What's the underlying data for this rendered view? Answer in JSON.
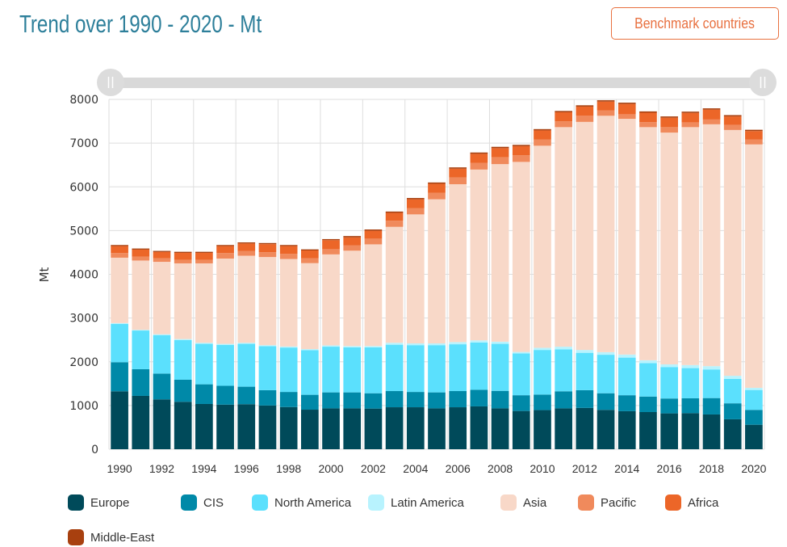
{
  "header": {
    "title": "Trend over 1990 - 2020 - Mt",
    "benchmark_button": "Benchmark countries"
  },
  "slider": {
    "range_start": "1990",
    "range_end": "2020"
  },
  "colors": {
    "title": "#2d7f9a",
    "accent": "#e8703f"
  },
  "chart_data": {
    "type": "bar",
    "stacked": true,
    "title": "Trend over 1990 - 2020 - Mt",
    "xlabel": "",
    "ylabel": "Mt",
    "ylim": [
      0,
      8000
    ],
    "yticks": [
      0,
      1000,
      2000,
      3000,
      4000,
      5000,
      6000,
      7000,
      8000
    ],
    "xtick_labels": [
      "1990",
      "1992",
      "1994",
      "1996",
      "1998",
      "2000",
      "2002",
      "2004",
      "2006",
      "2008",
      "2010",
      "2012",
      "2014",
      "2016",
      "2018",
      "2020"
    ],
    "grid": true,
    "legend_position": "bottom",
    "categories": [
      "1990",
      "1991",
      "1992",
      "1993",
      "1994",
      "1995",
      "1996",
      "1997",
      "1998",
      "1999",
      "2000",
      "2001",
      "2002",
      "2003",
      "2004",
      "2005",
      "2006",
      "2007",
      "2008",
      "2009",
      "2010",
      "2011",
      "2012",
      "2013",
      "2014",
      "2015",
      "2016",
      "2017",
      "2018",
      "2019",
      "2020"
    ],
    "series": [
      {
        "name": "Europe",
        "color": "#004a5a",
        "values": [
          1325,
          1220,
          1140,
          1085,
          1035,
          1020,
          1030,
          1000,
          965,
          905,
          935,
          935,
          930,
          960,
          960,
          935,
          960,
          980,
          935,
          875,
          895,
          935,
          945,
          900,
          870,
          850,
          820,
          825,
          795,
          685,
          560
        ]
      },
      {
        "name": "CIS",
        "color": "#0089a8",
        "values": [
          665,
          610,
          590,
          505,
          450,
          430,
          400,
          350,
          345,
          340,
          365,
          365,
          350,
          370,
          350,
          365,
          370,
          380,
          400,
          360,
          355,
          390,
          405,
          380,
          365,
          355,
          340,
          340,
          375,
          365,
          340
        ]
      },
      {
        "name": "North America",
        "color": "#5be0fd",
        "values": [
          875,
          885,
          880,
          905,
          925,
          935,
          980,
          1005,
          1015,
          1020,
          1045,
          1030,
          1050,
          1060,
          1070,
          1080,
          1070,
          1080,
          1075,
          955,
          1020,
          960,
          855,
          880,
          860,
          765,
          720,
          690,
          655,
          560,
          455
        ]
      },
      {
        "name": "Latin America",
        "color": "#b8f3fe",
        "values": [
          20,
          15,
          20,
          25,
          25,
          25,
          25,
          25,
          25,
          25,
          30,
          30,
          30,
          45,
          40,
          40,
          50,
          50,
          50,
          35,
          50,
          60,
          65,
          60,
          70,
          65,
          60,
          70,
          75,
          70,
          50
        ]
      },
      {
        "name": "Asia",
        "color": "#f8d8c8",
        "values": [
          1495,
          1585,
          1655,
          1730,
          1815,
          1950,
          1990,
          2015,
          2000,
          1965,
          2080,
          2180,
          2325,
          2650,
          2950,
          3295,
          3610,
          3905,
          4060,
          4345,
          4620,
          5020,
          5215,
          5405,
          5390,
          5330,
          5300,
          5440,
          5530,
          5620,
          5565
        ]
      },
      {
        "name": "Pacific",
        "color": "#f08a5c",
        "values": [
          105,
          90,
          80,
          80,
          80,
          125,
          105,
          110,
          120,
          115,
          120,
          125,
          130,
          140,
          145,
          150,
          155,
          155,
          160,
          150,
          145,
          135,
          145,
          125,
          105,
          115,
          125,
          110,
          110,
          115,
          115
        ]
      },
      {
        "name": "Africa",
        "color": "#ec6628",
        "values": [
          160,
          160,
          145,
          160,
          160,
          160,
          175,
          185,
          175,
          175,
          205,
          180,
          180,
          180,
          200,
          205,
          200,
          205,
          205,
          210,
          205,
          205,
          205,
          200,
          235,
          215,
          215,
          215,
          225,
          195,
          190
        ]
      },
      {
        "name": "Middle-East",
        "color": "#a8400f",
        "values": [
          25,
          25,
          25,
          25,
          25,
          25,
          25,
          25,
          25,
          25,
          25,
          30,
          30,
          30,
          30,
          30,
          30,
          30,
          30,
          30,
          30,
          30,
          30,
          30,
          30,
          30,
          30,
          30,
          30,
          30,
          30
        ]
      }
    ]
  }
}
